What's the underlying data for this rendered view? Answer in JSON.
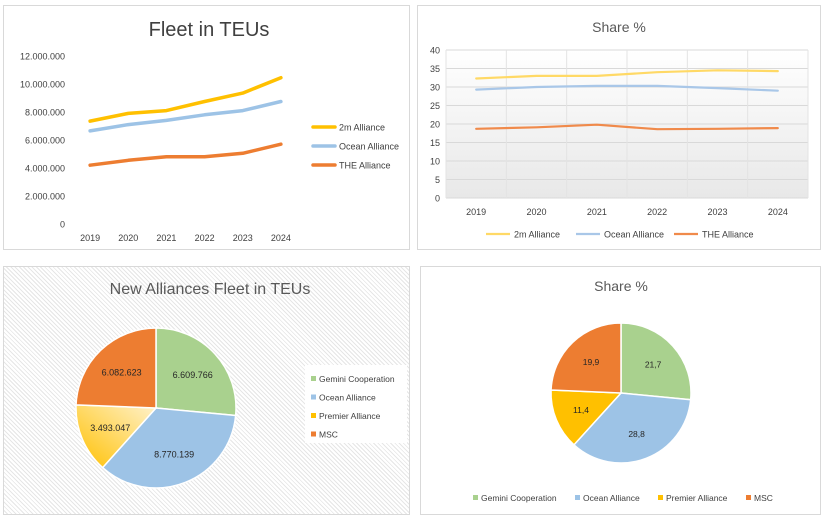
{
  "chart_data": [
    {
      "type": "line",
      "title": "Fleet in TEUs",
      "categories": [
        "2019",
        "2020",
        "2021",
        "2022",
        "2023",
        "2024"
      ],
      "ylim": [
        0,
        12000000
      ],
      "yticks": [
        0,
        2000000,
        4000000,
        6000000,
        8000000,
        10000000,
        12000000
      ],
      "ytick_labels": [
        "0",
        "2.000.000",
        "4.000.000",
        "6.000.000",
        "8.000.000",
        "10.000.000",
        "12.000.000"
      ],
      "grid": false,
      "legend": "right",
      "series": [
        {
          "name": "2m Alliance",
          "color": "#ffc000",
          "values": [
            7350000,
            7900000,
            8100000,
            8750000,
            9350000,
            10450000
          ]
        },
        {
          "name": "Ocean Alliance",
          "color": "#9dc3e6",
          "values": [
            6650000,
            7100000,
            7400000,
            7800000,
            8100000,
            8750000
          ]
        },
        {
          "name": "THE Alliance",
          "color": "#ed7d31",
          "values": [
            4200000,
            4550000,
            4800000,
            4800000,
            5050000,
            5700000
          ]
        }
      ]
    },
    {
      "type": "line",
      "title": "Share %",
      "categories": [
        "2019",
        "2020",
        "2021",
        "2022",
        "2023",
        "2024"
      ],
      "ylim": [
        0,
        40
      ],
      "yticks": [
        0,
        5,
        10,
        15,
        20,
        25,
        30,
        35,
        40
      ],
      "ytick_labels": [
        "0",
        "5",
        "10",
        "15",
        "20",
        "25",
        "30",
        "35",
        "40"
      ],
      "grid": true,
      "legend": "bottom",
      "series": [
        {
          "name": "2m Alliance",
          "color": "#ffd966",
          "values": [
            32.3,
            33.0,
            33.0,
            34.0,
            34.5,
            34.3
          ]
        },
        {
          "name": "Ocean Alliance",
          "color": "#a9c7e8",
          "values": [
            29.3,
            30.0,
            30.3,
            30.3,
            29.7,
            29.0
          ]
        },
        {
          "name": "THE Alliance",
          "color": "#f08a4b",
          "values": [
            18.7,
            19.1,
            19.8,
            18.6,
            18.7,
            18.9
          ]
        }
      ]
    },
    {
      "type": "pie",
      "title": "New Alliances Fleet in TEUs",
      "legend": "right",
      "slices": [
        {
          "name": "Gemini Cooperation",
          "value": 6609766,
          "label": "6.609.766",
          "color": "#a9d18e"
        },
        {
          "name": "Ocean Alliance",
          "value": 8770139,
          "label": "8.770.139",
          "color": "#9dc3e6"
        },
        {
          "name": "Premier Alliance",
          "value": 3493047,
          "label": "3.493.047",
          "color": "#ffc000"
        },
        {
          "name": "MSC",
          "value": 6082623,
          "label": "6.082.623",
          "color": "#ed7d31"
        }
      ]
    },
    {
      "type": "pie",
      "title": "Share %",
      "legend": "bottom",
      "slices": [
        {
          "name": "Gemini Cooperation",
          "value": 21.7,
          "label": "21,7",
          "color": "#a9d18e"
        },
        {
          "name": "Ocean Alliance",
          "value": 28.8,
          "label": "28,8",
          "color": "#9dc3e6"
        },
        {
          "name": "Premier Alliance",
          "value": 11.4,
          "label": "11,4",
          "color": "#ffc000"
        },
        {
          "name": "MSC",
          "value": 19.9,
          "label": "19,9",
          "color": "#ed7d31"
        }
      ]
    }
  ]
}
